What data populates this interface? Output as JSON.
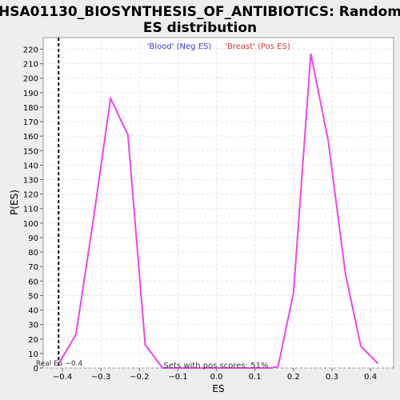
{
  "chart_data": {
    "type": "line",
    "title_line1": "HSA01130_BIOSYNTHESIS_OF_ANTIBIOTICS: Random",
    "title_line2": "ES distribution",
    "xlabel": "ES",
    "ylabel": "P(ES)",
    "xlim": [
      -0.45,
      0.46
    ],
    "ylim": [
      0,
      228
    ],
    "x_ticks": [
      -0.4,
      -0.3,
      -0.2,
      -0.1,
      0.0,
      0.1,
      0.2,
      0.3,
      0.4
    ],
    "x_tick_labels": [
      "−0.4",
      "−0.3",
      "−0.2",
      "−0.1",
      "0.0",
      "0.1",
      "0.2",
      "0.3",
      "0.4"
    ],
    "y_ticks": [
      0,
      10,
      20,
      30,
      40,
      50,
      60,
      70,
      80,
      90,
      100,
      110,
      120,
      130,
      140,
      150,
      160,
      170,
      180,
      190,
      200,
      210,
      220
    ],
    "grid": true,
    "legend": {
      "placement": "top-center",
      "entries": [
        {
          "label": "'Blood' (Neg ES)",
          "color": "#3b3bd6"
        },
        {
          "label": "'Breast' (Pos ES)",
          "color": "#d63b3b"
        }
      ]
    },
    "series": [
      {
        "color": "#ee44ee",
        "x": [
          -0.41,
          -0.365,
          -0.32,
          -0.275,
          -0.23,
          -0.185,
          -0.14,
          -0.095,
          -0.05,
          0.0,
          0.05,
          0.095,
          0.14,
          0.16,
          0.2,
          0.245,
          0.29,
          0.335,
          0.375,
          0.42
        ],
        "y": [
          3,
          23,
          102,
          186,
          161,
          16,
          0,
          0,
          0,
          0,
          0,
          0,
          0,
          1,
          52,
          217,
          157,
          65,
          15,
          3
        ]
      }
    ],
    "marker": {
      "x": -0.41,
      "label": "Real ES −0.4",
      "style": "dashed"
    },
    "annotation": "Sets with pos scores: 51%"
  }
}
